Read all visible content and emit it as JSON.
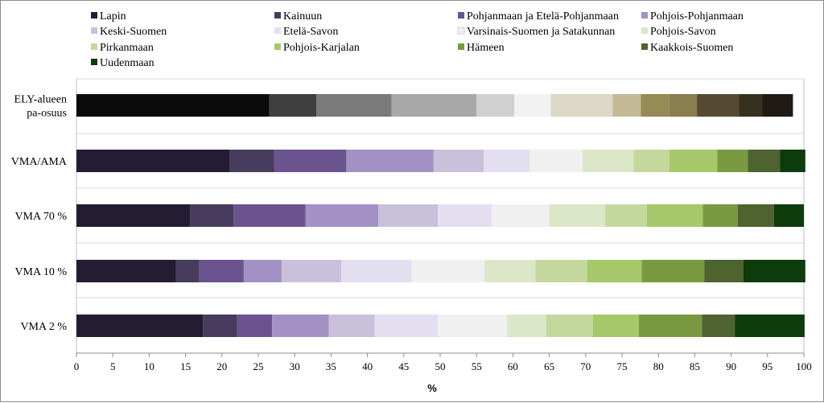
{
  "chart_data": {
    "type": "bar",
    "orientation": "horizontal",
    "stacked": true,
    "xlabel": "%",
    "xlim": [
      0,
      100
    ],
    "xticks": [
      0,
      5,
      10,
      15,
      20,
      25,
      30,
      35,
      40,
      45,
      50,
      55,
      60,
      65,
      70,
      75,
      80,
      85,
      90,
      95,
      100
    ],
    "grid": true,
    "legend_position": "top",
    "categories": [
      "ELY-alueen\npa-osuus",
      "VMA/AMA",
      "VMA 70 %",
      "VMA 10 %",
      "VMA 2 %"
    ],
    "series": [
      {
        "name": "Lapin",
        "values": [
          26.5,
          21.1,
          15.6,
          13.7,
          17.4
        ]
      },
      {
        "name": "Kainuun",
        "values": [
          6.5,
          6.1,
          6.0,
          3.2,
          4.7
        ]
      },
      {
        "name": "Pohjanmaan ja Etelä-Pohjanmaan",
        "values": [
          10.3,
          9.9,
          9.9,
          6.1,
          4.8
        ]
      },
      {
        "name": "Pohjois-Pohjanmaan",
        "values": [
          11.7,
          12.0,
          10.0,
          5.2,
          7.8
        ]
      },
      {
        "name": "Keski-Suomen",
        "values": [
          5.2,
          6.9,
          8.2,
          8.2,
          6.3
        ]
      },
      {
        "name": "Etelä-Savon",
        "values": [
          5.0,
          6.3,
          7.4,
          9.7,
          8.7
        ]
      },
      {
        "name": "Varsinais-Suomen ja Satakunnan",
        "values": [
          8.5,
          7.3,
          7.9,
          10.0,
          9.5
        ]
      },
      {
        "name": "Pohjois-Savon",
        "values": [
          3.9,
          7.0,
          7.7,
          7.0,
          5.4
        ]
      },
      {
        "name": "Pirkanmaan",
        "values": [
          3.9,
          4.9,
          5.7,
          7.1,
          6.4
        ]
      },
      {
        "name": "Pohjois-Karjalan",
        "values": [
          3.8,
          6.6,
          7.7,
          7.5,
          6.3
        ]
      },
      {
        "name": "Hämeen",
        "values": [
          5.8,
          4.2,
          4.8,
          8.6,
          8.7
        ]
      },
      {
        "name": "Kaakkois-Suomen",
        "values": [
          3.2,
          4.4,
          5.0,
          5.4,
          4.5
        ]
      },
      {
        "name": "Uudenmaan",
        "values": [
          4.2,
          3.5,
          4.1,
          8.5,
          9.6
        ]
      }
    ],
    "legend_colors": [
      "#231c33",
      "#483c5e",
      "#6b5390",
      "#a491c4",
      "#c9c0dc",
      "#e4dff0",
      "#f0f0f0",
      "#dbe7c8",
      "#c4d89e",
      "#a6c86a",
      "#7a9a42",
      "#4f6330",
      "#0d3b0c"
    ],
    "row_colors": [
      [
        "#0b0b0b",
        "#3f3f3f",
        "#7a7a7a",
        "#a8a8a8",
        "#d0d0d0",
        "#f2f2f2",
        "#ddd8c5",
        "#c3b996",
        "#968a55",
        "#8a7d4e",
        "#554a31",
        "#36301f",
        "#1f1b14"
      ],
      [
        "#231c33",
        "#483c5e",
        "#6b5390",
        "#a491c4",
        "#c9c0dc",
        "#e4dff0",
        "#f0f0f0",
        "#dbe7c8",
        "#c4d89e",
        "#a6c86a",
        "#7a9a42",
        "#4f6330",
        "#0d3b0c"
      ],
      [
        "#231c33",
        "#483c5e",
        "#6b5390",
        "#a491c4",
        "#c9c0dc",
        "#e4dff0",
        "#f0f0f0",
        "#dbe7c8",
        "#c4d89e",
        "#a6c86a",
        "#7a9a42",
        "#4f6330",
        "#0d3b0c"
      ],
      [
        "#231c33",
        "#483c5e",
        "#6b5390",
        "#a491c4",
        "#c9c0dc",
        "#e4dff0",
        "#f0f0f0",
        "#dbe7c8",
        "#c4d89e",
        "#a6c86a",
        "#7a9a42",
        "#4f6330",
        "#0d3b0c"
      ],
      [
        "#231c33",
        "#483c5e",
        "#6b5390",
        "#a491c4",
        "#c9c0dc",
        "#e4dff0",
        "#f0f0f0",
        "#dbe7c8",
        "#c4d89e",
        "#a6c86a",
        "#7a9a42",
        "#4f6330",
        "#0d3b0c"
      ]
    ]
  }
}
